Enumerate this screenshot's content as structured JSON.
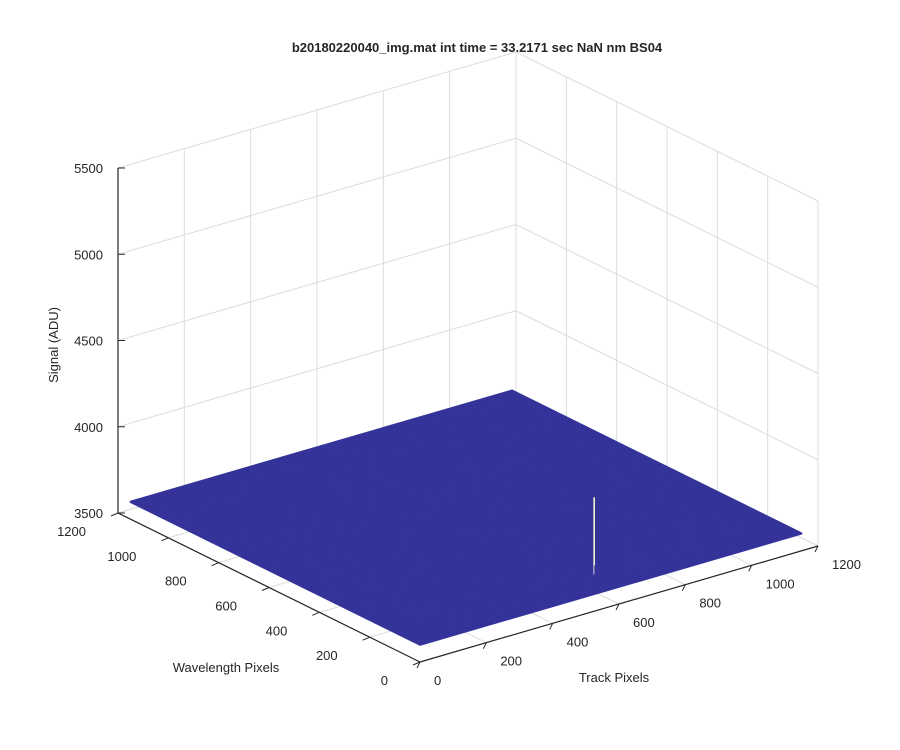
{
  "chart_data": {
    "type": "surface",
    "title": "b20180220040_img.mat int time = 33.2171 sec  NaN nm BS04",
    "xlabel": "Track Pixels",
    "ylabel": "Wavelength Pixels",
    "zlabel": "Signal (ADU)",
    "xlim": [
      0,
      1200
    ],
    "ylim": [
      0,
      1200
    ],
    "zlim": [
      3500,
      5500
    ],
    "xticks": [
      "0",
      "200",
      "400",
      "600",
      "800",
      "1000",
      "1200"
    ],
    "yticks": [
      "0",
      "200",
      "400",
      "600",
      "800",
      "1000",
      "1200"
    ],
    "zticks": [
      "3500",
      "4000",
      "4500",
      "5000",
      "5500"
    ],
    "surface": {
      "x_range": [
        1,
        1150
      ],
      "y_range": [
        1,
        1150
      ],
      "base_level": 3600,
      "spike": {
        "x": 600,
        "y": 100,
        "peak": 4000
      }
    },
    "grid": true,
    "surface_color": "#333399",
    "spike_color": "#ffffcc"
  }
}
